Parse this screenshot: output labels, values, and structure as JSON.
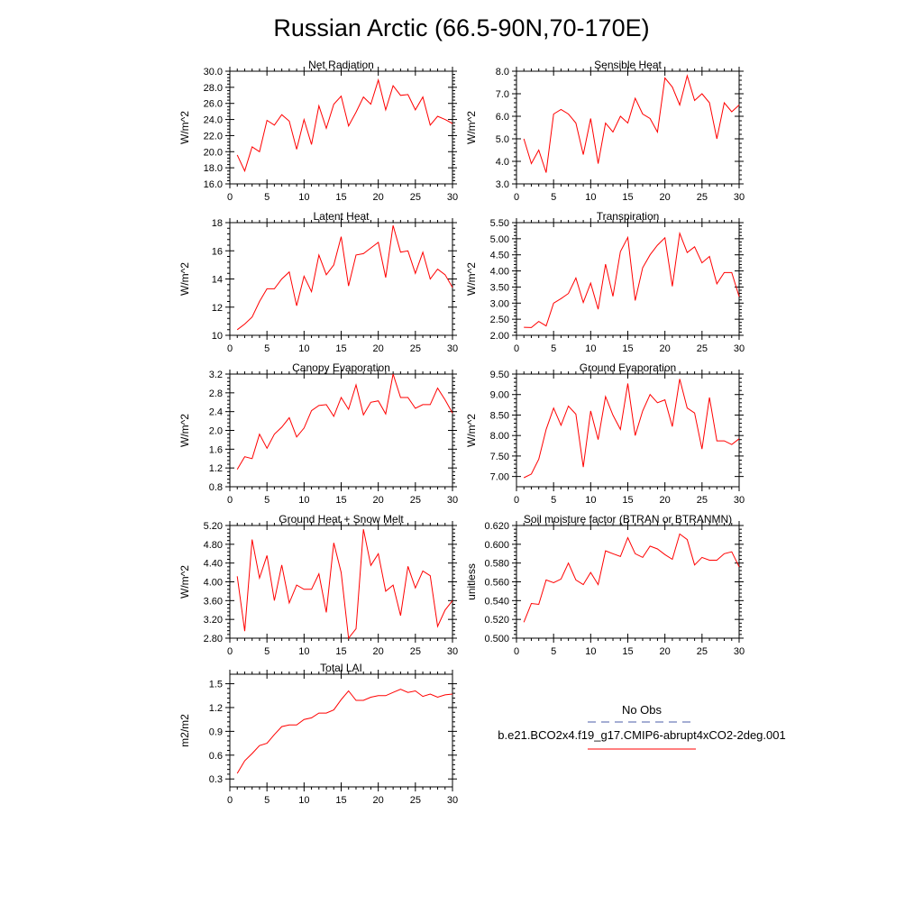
{
  "title": "Russian Arctic (66.5-90N,70-170E)",
  "series_color": "#ff0000",
  "obs_color": "#4b5ea8",
  "legend": {
    "obs_label": "No Obs",
    "model_label": "b.e21.BCO2x4.f19_g17.CMIP6-abrupt4xCO2-2deg.001"
  },
  "chart_data": [
    {
      "type": "line",
      "title": "Net Radiation",
      "ylabel": "W/m^2",
      "xlabel": "",
      "xlim": [
        0,
        30
      ],
      "ylim": [
        16,
        30
      ],
      "yticks": [
        16,
        18,
        20,
        22,
        24,
        26,
        28,
        30
      ],
      "ytick_labels": [
        "16.0",
        "18.0",
        "20.0",
        "22.0",
        "24.0",
        "26.0",
        "28.0",
        "30.0"
      ],
      "xticks": [
        0,
        5,
        10,
        15,
        20,
        25,
        30
      ],
      "x": [
        1,
        2,
        3,
        4,
        5,
        6,
        7,
        8,
        9,
        10,
        11,
        12,
        13,
        14,
        15,
        16,
        17,
        18,
        19,
        20,
        21,
        22,
        23,
        24,
        25,
        26,
        27,
        28,
        29,
        30
      ],
      "values": [
        19.6,
        17.6,
        20.6,
        20.0,
        23.9,
        23.3,
        24.6,
        23.8,
        20.3,
        24.0,
        20.9,
        25.7,
        22.9,
        25.9,
        26.9,
        23.2,
        24.9,
        26.8,
        25.9,
        28.9,
        25.2,
        28.2,
        27.0,
        27.1,
        25.2,
        26.8,
        23.3,
        24.4,
        24.0,
        23.5
      ]
    },
    {
      "type": "line",
      "title": "Sensible Heat",
      "ylabel": "W/m^2",
      "xlabel": "",
      "xlim": [
        0,
        30
      ],
      "ylim": [
        3,
        8
      ],
      "yticks": [
        3,
        4,
        5,
        6,
        7,
        8
      ],
      "ytick_labels": [
        "3.0",
        "4.0",
        "5.0",
        "6.0",
        "7.0",
        "8.0"
      ],
      "xticks": [
        0,
        5,
        10,
        15,
        20,
        25,
        30
      ],
      "x": [
        1,
        2,
        3,
        4,
        5,
        6,
        7,
        8,
        9,
        10,
        11,
        12,
        13,
        14,
        15,
        16,
        17,
        18,
        19,
        20,
        21,
        22,
        23,
        24,
        25,
        26,
        27,
        28,
        29,
        30
      ],
      "values": [
        5.0,
        3.9,
        4.5,
        3.5,
        6.1,
        6.3,
        6.1,
        5.7,
        4.3,
        5.9,
        3.9,
        5.7,
        5.3,
        6.0,
        5.7,
        6.8,
        6.1,
        5.9,
        5.3,
        7.7,
        7.3,
        6.5,
        7.8,
        6.7,
        7.0,
        6.6,
        5.0,
        6.6,
        6.2,
        6.5
      ]
    },
    {
      "type": "line",
      "title": "Latent Heat",
      "ylabel": "W/m^2",
      "xlabel": "",
      "xlim": [
        0,
        30
      ],
      "ylim": [
        10,
        18
      ],
      "yticks": [
        10,
        12,
        14,
        16,
        18
      ],
      "ytick_labels": [
        "10",
        "12",
        "14",
        "16",
        "18"
      ],
      "xticks": [
        0,
        5,
        10,
        15,
        20,
        25,
        30
      ],
      "x": [
        1,
        2,
        3,
        4,
        5,
        6,
        7,
        8,
        9,
        10,
        11,
        12,
        13,
        14,
        15,
        16,
        17,
        18,
        19,
        20,
        21,
        22,
        23,
        24,
        25,
        26,
        27,
        28,
        29,
        30
      ],
      "values": [
        10.4,
        10.8,
        11.3,
        12.4,
        13.3,
        13.3,
        14.0,
        14.5,
        12.1,
        14.2,
        13.1,
        15.7,
        14.3,
        15.0,
        17.0,
        13.5,
        15.7,
        15.8,
        16.2,
        16.6,
        14.1,
        17.8,
        15.9,
        16.0,
        14.4,
        15.9,
        14.0,
        14.7,
        14.3,
        13.4
      ]
    },
    {
      "type": "line",
      "title": "Transpiration",
      "ylabel": "W/m^2",
      "xlabel": "",
      "xlim": [
        0,
        30
      ],
      "ylim": [
        2,
        5.5
      ],
      "yticks": [
        2,
        2.5,
        3,
        3.5,
        4,
        4.5,
        5,
        5.5
      ],
      "ytick_labels": [
        "2.00",
        "2.50",
        "3.00",
        "3.50",
        "4.00",
        "4.50",
        "5.00",
        "5.50"
      ],
      "xticks": [
        0,
        5,
        10,
        15,
        20,
        25,
        30
      ],
      "x": [
        1,
        2,
        3,
        4,
        5,
        6,
        7,
        8,
        9,
        10,
        11,
        12,
        13,
        14,
        15,
        16,
        17,
        18,
        19,
        20,
        21,
        22,
        23,
        24,
        25,
        26,
        27,
        28,
        29,
        30
      ],
      "values": [
        2.25,
        2.24,
        2.43,
        2.29,
        3.0,
        3.14,
        3.3,
        3.78,
        3.02,
        3.62,
        2.81,
        4.21,
        3.21,
        4.6,
        5.04,
        3.08,
        4.1,
        4.5,
        4.8,
        5.03,
        3.52,
        5.17,
        4.57,
        4.75,
        4.25,
        4.45,
        3.6,
        3.95,
        3.95,
        3.2
      ]
    },
    {
      "type": "line",
      "title": "Canopy Evaporation",
      "ylabel": "W/m^2",
      "xlabel": "",
      "xlim": [
        0,
        30
      ],
      "ylim": [
        0.8,
        3.2
      ],
      "yticks": [
        0.8,
        1.2,
        1.6,
        2.0,
        2.4,
        2.8,
        3.2
      ],
      "ytick_labels": [
        "0.8",
        "1.2",
        "1.6",
        "2.0",
        "2.4",
        "2.8",
        "3.2"
      ],
      "xticks": [
        0,
        5,
        10,
        15,
        20,
        25,
        30
      ],
      "x": [
        1,
        2,
        3,
        4,
        5,
        6,
        7,
        8,
        9,
        10,
        11,
        12,
        13,
        14,
        15,
        16,
        17,
        18,
        19,
        20,
        21,
        22,
        23,
        24,
        25,
        26,
        27,
        28,
        29,
        30
      ],
      "values": [
        1.17,
        1.44,
        1.4,
        1.92,
        1.62,
        1.92,
        2.07,
        2.27,
        1.86,
        2.05,
        2.42,
        2.53,
        2.55,
        2.3,
        2.7,
        2.45,
        2.97,
        2.33,
        2.6,
        2.63,
        2.35,
        3.2,
        2.7,
        2.7,
        2.47,
        2.55,
        2.55,
        2.9,
        2.65,
        2.37
      ]
    },
    {
      "type": "line",
      "title": "Ground Evaporation",
      "ylabel": "W/m^2",
      "xlabel": "",
      "xlim": [
        0,
        30
      ],
      "ylim": [
        6.75,
        9.5
      ],
      "yticks": [
        7.0,
        7.5,
        8.0,
        8.5,
        9.0,
        9.5
      ],
      "ytick_labels": [
        "7.00",
        "7.50",
        "8.00",
        "8.50",
        "9.00",
        "9.50"
      ],
      "xticks": [
        0,
        5,
        10,
        15,
        20,
        25,
        30
      ],
      "x": [
        1,
        2,
        3,
        4,
        5,
        6,
        7,
        8,
        9,
        10,
        11,
        12,
        13,
        14,
        15,
        16,
        17,
        18,
        19,
        20,
        21,
        22,
        23,
        24,
        25,
        26,
        27,
        28,
        29,
        30
      ],
      "values": [
        6.97,
        7.06,
        7.42,
        8.15,
        8.67,
        8.25,
        8.72,
        8.52,
        7.23,
        8.6,
        7.9,
        8.95,
        8.5,
        8.15,
        9.27,
        8.0,
        8.6,
        9.0,
        8.8,
        8.87,
        8.22,
        9.38,
        8.67,
        8.55,
        7.67,
        8.93,
        7.87,
        7.87,
        7.78,
        7.92
      ]
    },
    {
      "type": "line",
      "title": "Ground Heat + Snow Melt",
      "ylabel": "W/m^2",
      "xlabel": "",
      "xlim": [
        0,
        30
      ],
      "ylim": [
        2.8,
        5.2
      ],
      "yticks": [
        2.8,
        3.2,
        3.6,
        4.0,
        4.4,
        4.8,
        5.2
      ],
      "ytick_labels": [
        "2.80",
        "3.20",
        "3.60",
        "4.00",
        "4.40",
        "4.80",
        "5.20"
      ],
      "xticks": [
        0,
        5,
        10,
        15,
        20,
        25,
        30
      ],
      "x": [
        1,
        2,
        3,
        4,
        5,
        6,
        7,
        8,
        9,
        10,
        11,
        12,
        13,
        14,
        15,
        16,
        17,
        18,
        19,
        20,
        21,
        22,
        23,
        24,
        25,
        26,
        27,
        28,
        29,
        30
      ],
      "values": [
        4.12,
        2.95,
        4.9,
        4.08,
        4.56,
        3.6,
        4.36,
        3.55,
        3.93,
        3.84,
        3.84,
        4.17,
        3.35,
        4.83,
        4.2,
        2.8,
        3.0,
        5.12,
        4.35,
        4.6,
        3.8,
        3.93,
        3.28,
        4.33,
        3.87,
        4.23,
        4.13,
        3.05,
        3.4,
        3.6
      ]
    },
    {
      "type": "line",
      "title": "Soil moisture factor (BTRAN or BTRANMN)",
      "ylabel": "unitless",
      "xlabel": "",
      "xlim": [
        0,
        30
      ],
      "ylim": [
        0.5,
        0.62
      ],
      "yticks": [
        0.5,
        0.52,
        0.54,
        0.56,
        0.58,
        0.6,
        0.62
      ],
      "ytick_labels": [
        "0.500",
        "0.520",
        "0.540",
        "0.560",
        "0.580",
        "0.600",
        "0.620"
      ],
      "xticks": [
        0,
        5,
        10,
        15,
        20,
        25,
        30
      ],
      "x": [
        1,
        2,
        3,
        4,
        5,
        6,
        7,
        8,
        9,
        10,
        11,
        12,
        13,
        14,
        15,
        16,
        17,
        18,
        19,
        20,
        21,
        22,
        23,
        24,
        25,
        26,
        27,
        28,
        29,
        30
      ],
      "values": [
        0.517,
        0.537,
        0.536,
        0.562,
        0.559,
        0.563,
        0.58,
        0.562,
        0.557,
        0.57,
        0.557,
        0.593,
        0.59,
        0.587,
        0.607,
        0.59,
        0.586,
        0.598,
        0.595,
        0.589,
        0.584,
        0.611,
        0.605,
        0.578,
        0.586,
        0.583,
        0.583,
        0.59,
        0.592,
        0.576
      ]
    },
    {
      "type": "line",
      "title": "Total LAI",
      "ylabel": "m2/m2",
      "xlabel": "",
      "xlim": [
        0,
        30
      ],
      "ylim": [
        0.2,
        1.62
      ],
      "yticks": [
        0.3,
        0.6,
        0.9,
        1.2,
        1.5
      ],
      "ytick_labels": [
        "0.3",
        "0.6",
        "0.9",
        "1.2",
        "1.5"
      ],
      "xticks": [
        0,
        5,
        10,
        15,
        20,
        25,
        30
      ],
      "x": [
        1,
        2,
        3,
        4,
        5,
        6,
        7,
        8,
        9,
        10,
        11,
        12,
        13,
        14,
        15,
        16,
        17,
        18,
        19,
        20,
        21,
        22,
        23,
        24,
        25,
        26,
        27,
        28,
        29,
        30
      ],
      "values": [
        0.37,
        0.53,
        0.62,
        0.72,
        0.75,
        0.86,
        0.96,
        0.98,
        0.98,
        1.05,
        1.07,
        1.13,
        1.13,
        1.17,
        1.3,
        1.41,
        1.29,
        1.29,
        1.33,
        1.35,
        1.35,
        1.39,
        1.43,
        1.39,
        1.41,
        1.34,
        1.37,
        1.33,
        1.36,
        1.37
      ]
    }
  ]
}
